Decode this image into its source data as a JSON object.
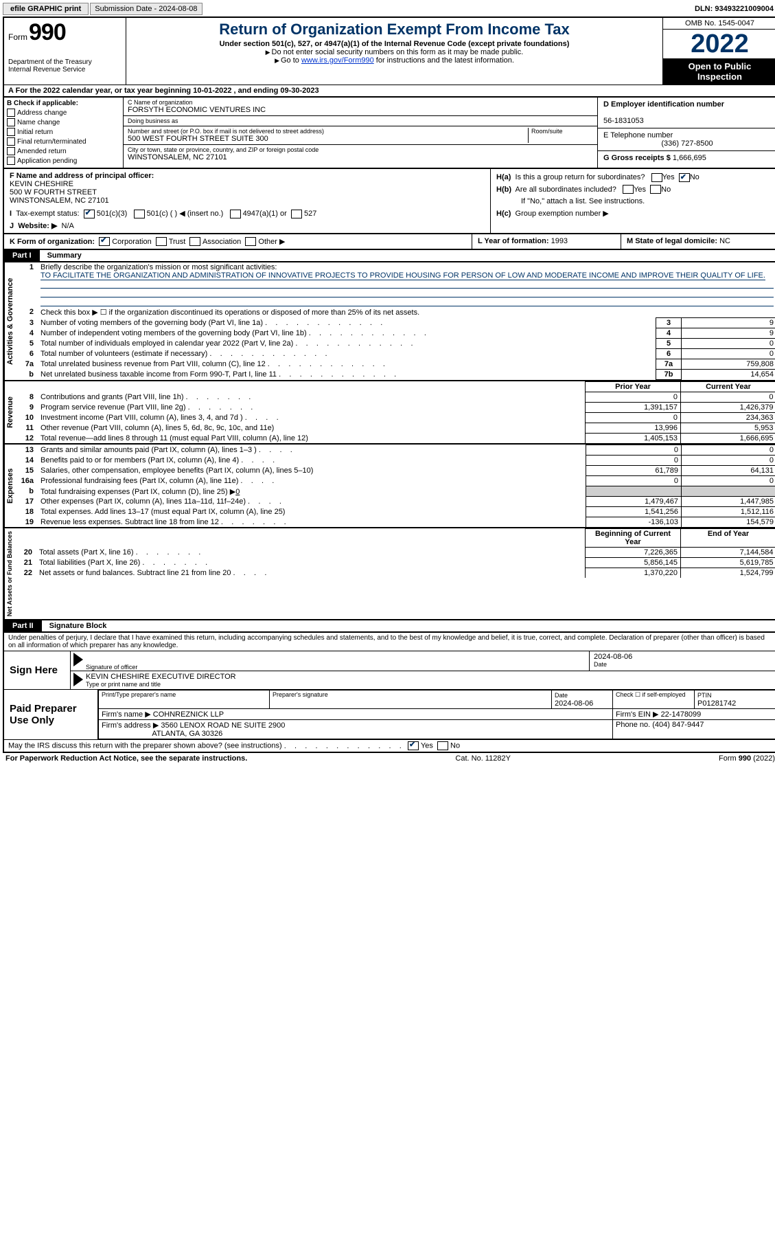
{
  "topbar": {
    "efile": "efile GRAPHIC print",
    "submission": "Submission Date - 2024-08-08",
    "dln": "DLN: 93493221009004"
  },
  "header": {
    "form_label": "Form",
    "form_number": "990",
    "title": "Return of Organization Exempt From Income Tax",
    "subtitle": "Under section 501(c), 527, or 4947(a)(1) of the Internal Revenue Code (except private foundations)",
    "instr1": "Do not enter social security numbers on this form as it may be made public.",
    "instr2_pre": "Go to ",
    "instr2_link": "www.irs.gov/Form990",
    "instr2_post": " for instructions and the latest information.",
    "dept": "Department of the Treasury",
    "irs": "Internal Revenue Service",
    "omb": "OMB No. 1545-0047",
    "year": "2022",
    "open": "Open to Public Inspection"
  },
  "A": {
    "text_pre": "For the 2022 calendar year, or tax year beginning ",
    "begin": "10-01-2022",
    "mid": " , and ending ",
    "end": "09-30-2023"
  },
  "B": {
    "label": "B Check if applicable:",
    "items": [
      "Address change",
      "Name change",
      "Initial return",
      "Final return/terminated",
      "Amended return",
      "Application pending"
    ]
  },
  "C": {
    "name_lbl": "C Name of organization",
    "name": "FORSYTH ECONOMIC VENTURES INC",
    "dba_lbl": "Doing business as",
    "dba": "",
    "street_lbl": "Number and street (or P.O. box if mail is not delivered to street address)",
    "street": "500 WEST FOURTH STREET SUITE 300",
    "room_lbl": "Room/suite",
    "city_lbl": "City or town, state or province, country, and ZIP or foreign postal code",
    "city": "WINSTONSALEM, NC  27101"
  },
  "D": {
    "lbl": "D Employer identification number",
    "val": "56-1831053"
  },
  "E": {
    "lbl": "E Telephone number",
    "val": "(336) 727-8500"
  },
  "G": {
    "lbl": "G Gross receipts $",
    "val": "1,666,695"
  },
  "F": {
    "lbl": "F  Name and address of principal officer:",
    "name": "KEVIN CHESHIRE",
    "street": "500 W FOURTH STREET",
    "city": "WINSTONSALEM, NC  27101"
  },
  "H": {
    "a": "Is this a group return for subordinates?",
    "b": "Are all subordinates included?",
    "b_note": "If \"No,\" attach a list. See instructions.",
    "c": "Group exemption number ▶",
    "ha_lbl": "H(a)",
    "hb_lbl": "H(b)",
    "hc_lbl": "H(c)",
    "yes": "Yes",
    "no": "No"
  },
  "I": {
    "lbl": "Tax-exempt status:",
    "opts": [
      "501(c)(3)",
      "501(c) (  ) ◀ (insert no.)",
      "4947(a)(1) or",
      "527"
    ]
  },
  "J": {
    "lbl": "Website: ▶",
    "val": "N/A"
  },
  "K": {
    "lbl": "K Form of organization:",
    "opts": [
      "Corporation",
      "Trust",
      "Association",
      "Other ▶"
    ]
  },
  "L": {
    "lbl": "L Year of formation:",
    "val": "1993"
  },
  "M": {
    "lbl": "M State of legal domicile:",
    "val": "NC"
  },
  "part1": {
    "bar": "Part I",
    "title": "Summary",
    "l1_lbl": "Briefly describe the organization's mission or most significant activities:",
    "l1_text": "TO FACILITATE THE ORGANIZATION AND ADMINISTRATION OF INNOVATIVE PROJECTS TO PROVIDE HOUSING FOR PERSON OF LOW AND MODERATE INCOME AND IMPROVE THEIR QUALITY OF LIFE.",
    "l2": "Check this box ▶ ☐ if the organization discontinued its operations or disposed of more than 25% of its net assets.",
    "rows_ag": [
      {
        "n": "3",
        "t": "Number of voting members of the governing body (Part VI, line 1a)",
        "box": "3",
        "v": "9"
      },
      {
        "n": "4",
        "t": "Number of independent voting members of the governing body (Part VI, line 1b)",
        "box": "4",
        "v": "9"
      },
      {
        "n": "5",
        "t": "Total number of individuals employed in calendar year 2022 (Part V, line 2a)",
        "box": "5",
        "v": "0"
      },
      {
        "n": "6",
        "t": "Total number of volunteers (estimate if necessary)",
        "box": "6",
        "v": "0"
      },
      {
        "n": "7a",
        "t": "Total unrelated business revenue from Part VIII, column (C), line 12",
        "box": "7a",
        "v": "759,808"
      },
      {
        "n": "b",
        "t": "Net unrelated business taxable income from Form 990-T, Part I, line 11",
        "box": "7b",
        "v": "14,654"
      }
    ],
    "rev_hdr_prior": "Prior Year",
    "rev_hdr_curr": "Current Year",
    "rows_rev": [
      {
        "n": "8",
        "t": "Contributions and grants (Part VIII, line 1h)",
        "p": "0",
        "c": "0"
      },
      {
        "n": "9",
        "t": "Program service revenue (Part VIII, line 2g)",
        "p": "1,391,157",
        "c": "1,426,379"
      },
      {
        "n": "10",
        "t": "Investment income (Part VIII, column (A), lines 3, 4, and 7d )",
        "p": "0",
        "c": "234,363"
      },
      {
        "n": "11",
        "t": "Other revenue (Part VIII, column (A), lines 5, 6d, 8c, 9c, 10c, and 11e)",
        "p": "13,996",
        "c": "5,953"
      },
      {
        "n": "12",
        "t": "Total revenue—add lines 8 through 11 (must equal Part VIII, column (A), line 12)",
        "p": "1,405,153",
        "c": "1,666,695"
      }
    ],
    "rows_exp": [
      {
        "n": "13",
        "t": "Grants and similar amounts paid (Part IX, column (A), lines 1–3 )",
        "p": "0",
        "c": "0"
      },
      {
        "n": "14",
        "t": "Benefits paid to or for members (Part IX, column (A), line 4)",
        "p": "0",
        "c": "0"
      },
      {
        "n": "15",
        "t": "Salaries, other compensation, employee benefits (Part IX, column (A), lines 5–10)",
        "p": "61,789",
        "c": "64,131"
      },
      {
        "n": "16a",
        "t": "Professional fundraising fees (Part IX, column (A), line 11e)",
        "p": "0",
        "c": "0"
      },
      {
        "n": "b",
        "t": "Total fundraising expenses (Part IX, column (D), line 25) ▶",
        "extra": "0",
        "grey": true
      },
      {
        "n": "17",
        "t": "Other expenses (Part IX, column (A), lines 11a–11d, 11f–24e)",
        "p": "1,479,467",
        "c": "1,447,985"
      },
      {
        "n": "18",
        "t": "Total expenses. Add lines 13–17 (must equal Part IX, column (A), line 25)",
        "p": "1,541,256",
        "c": "1,512,116"
      },
      {
        "n": "19",
        "t": "Revenue less expenses. Subtract line 18 from line 12",
        "p": "-136,103",
        "c": "154,579"
      }
    ],
    "na_hdr_beg": "Beginning of Current Year",
    "na_hdr_end": "End of Year",
    "rows_na": [
      {
        "n": "20",
        "t": "Total assets (Part X, line 16)",
        "p": "7,226,365",
        "c": "7,144,584"
      },
      {
        "n": "21",
        "t": "Total liabilities (Part X, line 26)",
        "p": "5,856,145",
        "c": "5,619,785"
      },
      {
        "n": "22",
        "t": "Net assets or fund balances. Subtract line 21 from line 20",
        "p": "1,370,220",
        "c": "1,524,799"
      }
    ],
    "vlabels": {
      "ag": "Activities & Governance",
      "rev": "Revenue",
      "exp": "Expenses",
      "na": "Net Assets or Fund Balances"
    }
  },
  "part2": {
    "bar": "Part II",
    "title": "Signature Block",
    "decl": "Under penalties of perjury, I declare that I have examined this return, including accompanying schedules and statements, and to the best of my knowledge and belief, it is true, correct, and complete. Declaration of preparer (other than officer) is based on all information of which preparer has any knowledge.",
    "sign_here": "Sign Here",
    "sig_officer": "Signature of officer",
    "sig_date": "Date",
    "sig_date_val": "2024-08-06",
    "sig_name": "KEVIN CHESHIRE  EXECUTIVE DIRECTOR",
    "sig_name_lbl": "Type or print name and title",
    "paid": "Paid Preparer Use Only",
    "prep_name_lbl": "Print/Type preparer's name",
    "prep_sig_lbl": "Preparer's signature",
    "prep_date_lbl": "Date",
    "prep_date": "2024-08-06",
    "prep_self": "Check ☐ if self-employed",
    "ptin_lbl": "PTIN",
    "ptin": "P01281742",
    "firm_name_lbl": "Firm's name    ▶",
    "firm_name": "COHNREZNICK LLP",
    "firm_ein_lbl": "Firm's EIN ▶",
    "firm_ein": "22-1478099",
    "firm_addr_lbl": "Firm's address ▶",
    "firm_addr1": "3560 LENOX ROAD NE SUITE 2900",
    "firm_addr2": "ATLANTA, GA  30326",
    "phone_lbl": "Phone no.",
    "phone": "(404) 847-9447",
    "may": "May the IRS discuss this return with the preparer shown above? (see instructions)",
    "yes": "Yes",
    "no": "No"
  },
  "footer": {
    "left": "For Paperwork Reduction Act Notice, see the separate instructions.",
    "mid": "Cat. No. 11282Y",
    "right_pre": "Form ",
    "right_b": "990",
    "right_post": " (2022)"
  }
}
